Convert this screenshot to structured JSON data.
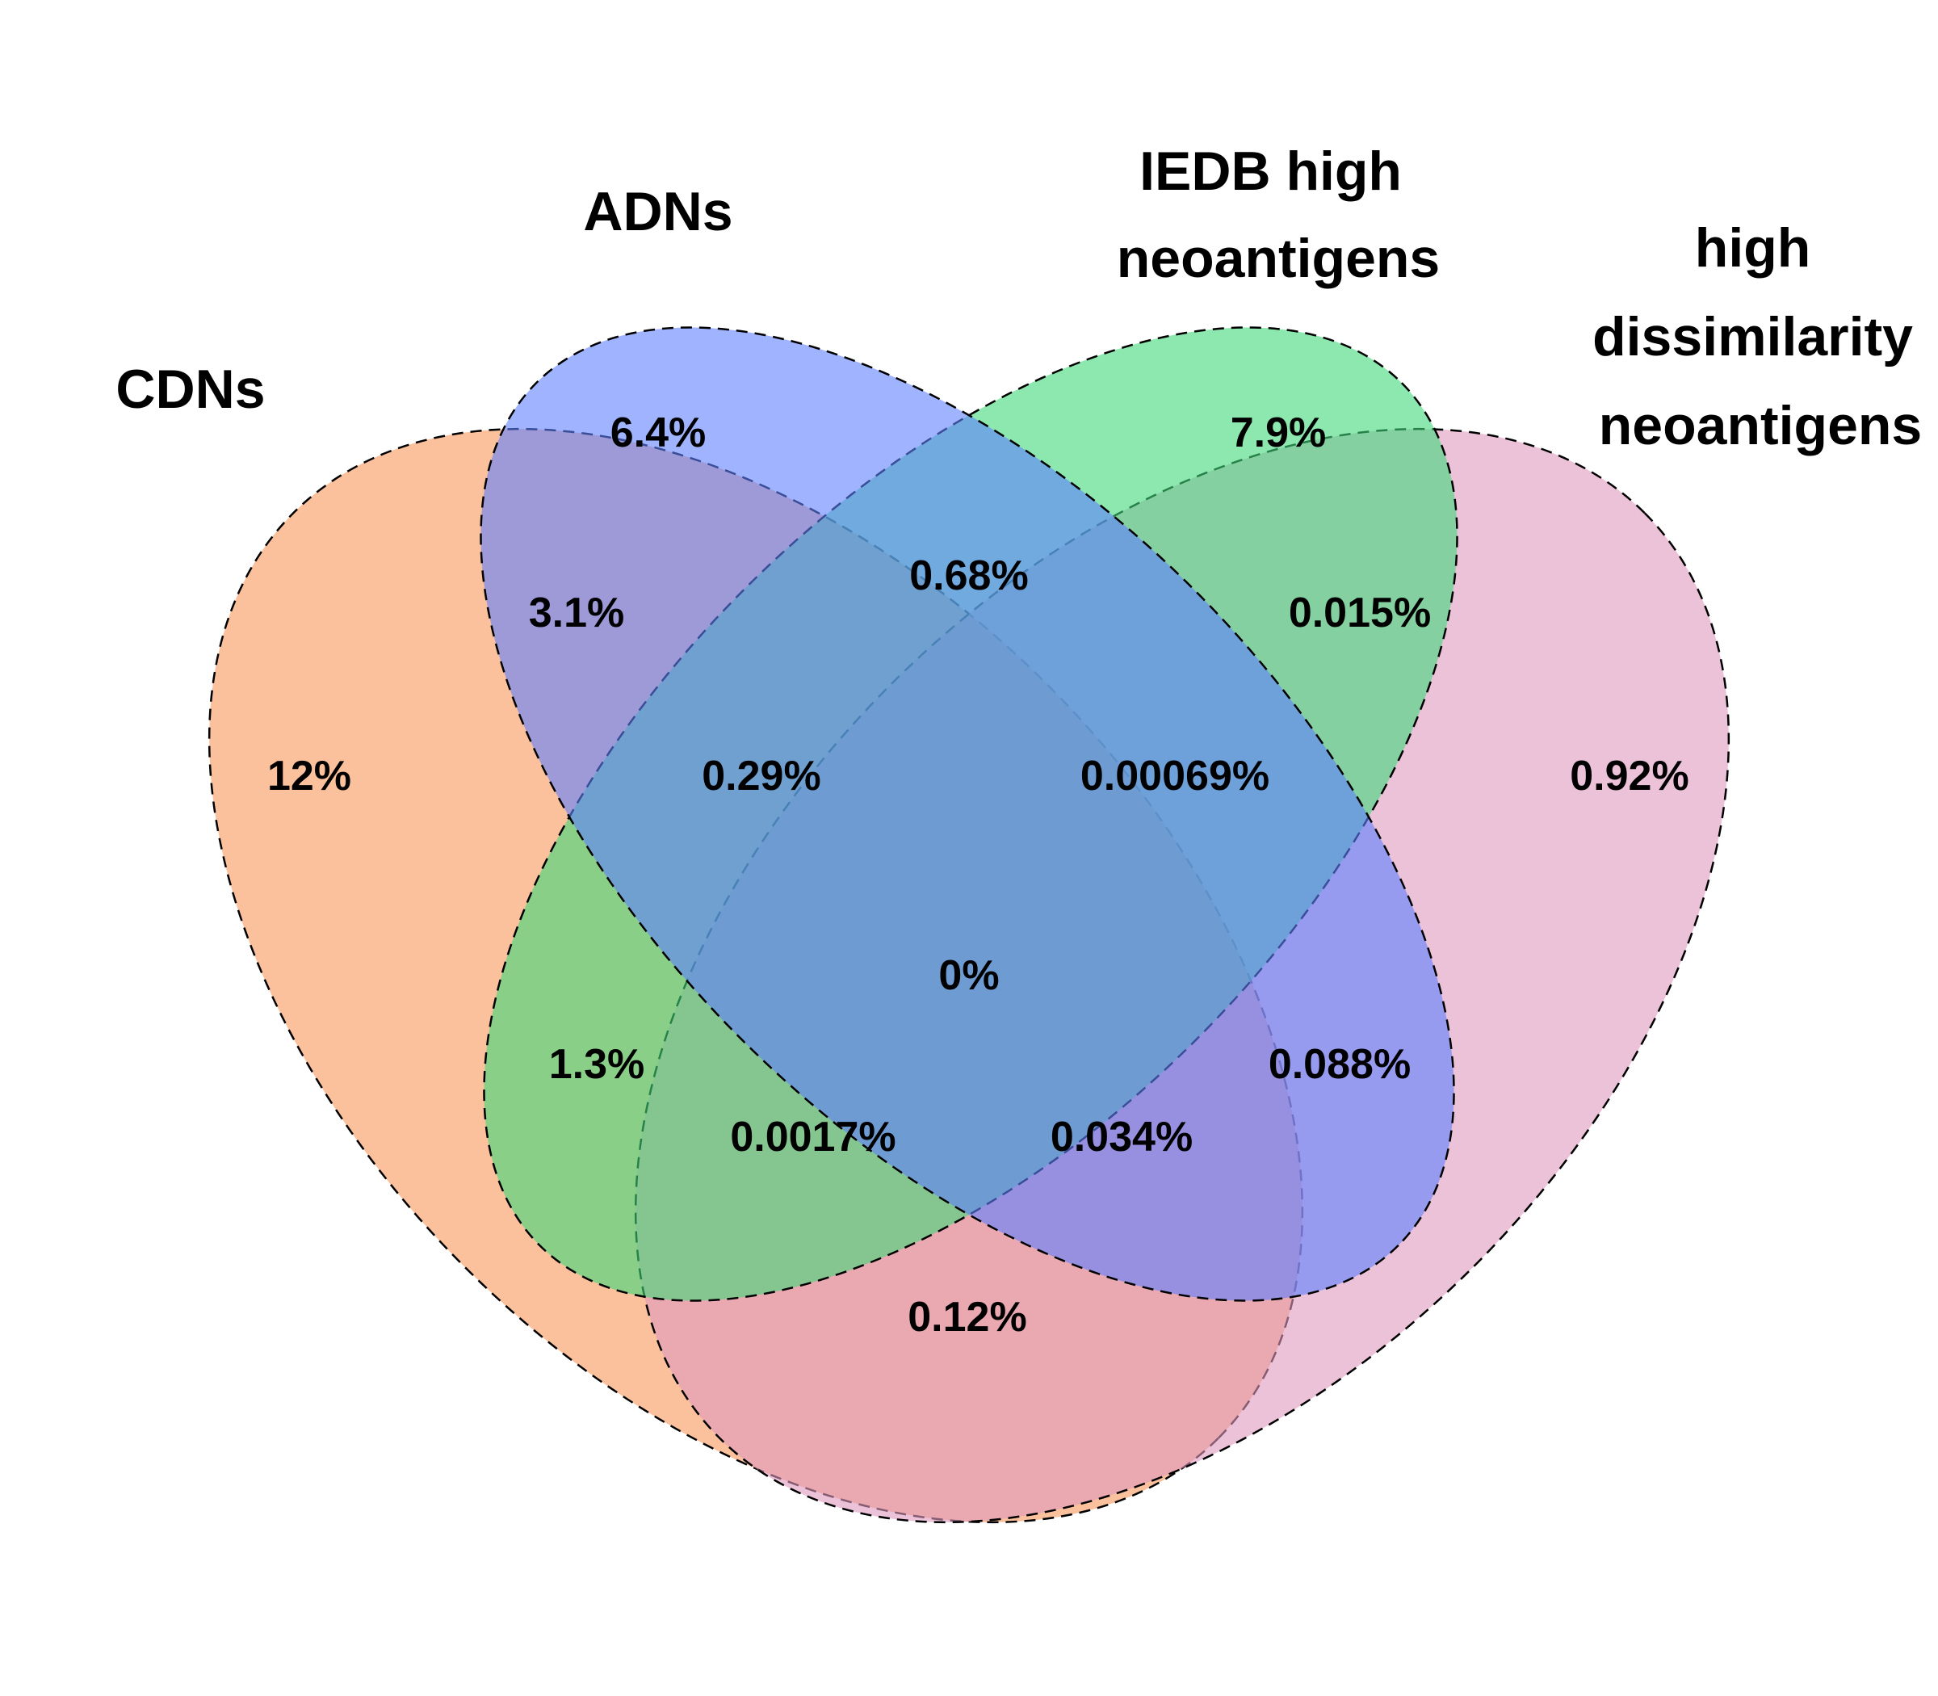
{
  "sets": [
    {
      "id": "cdns",
      "label_lines": [
        "CDNs"
      ],
      "color": "#F8965A"
    },
    {
      "id": "adns",
      "label_lines": [
        "ADNs"
      ],
      "color": "#5F80FF"
    },
    {
      "id": "iedb",
      "label_lines": [
        "IEDB high",
        "neoantigens"
      ],
      "color": "#3FD87A"
    },
    {
      "id": "dissim",
      "label_lines": [
        "high",
        "dissimilarity",
        "neoantigens"
      ],
      "color": "#E09AC0"
    }
  ],
  "fill_opacity": 0.6,
  "regions": [
    {
      "sets": [
        "cdns"
      ],
      "value": "12%"
    },
    {
      "sets": [
        "adns"
      ],
      "value": "6.4%"
    },
    {
      "sets": [
        "iedb"
      ],
      "value": "7.9%"
    },
    {
      "sets": [
        "dissim"
      ],
      "value": "0.92%"
    },
    {
      "sets": [
        "cdns",
        "adns"
      ],
      "value": "3.1%"
    },
    {
      "sets": [
        "adns",
        "iedb"
      ],
      "value": "0.68%"
    },
    {
      "sets": [
        "iedb",
        "dissim"
      ],
      "value": "0.015%"
    },
    {
      "sets": [
        "cdns",
        "adns",
        "iedb"
      ],
      "value": "0.29%"
    },
    {
      "sets": [
        "adns",
        "iedb",
        "dissim"
      ],
      "value": "0.00069%"
    },
    {
      "sets": [
        "cdns",
        "adns",
        "iedb",
        "dissim"
      ],
      "value": "0%"
    },
    {
      "sets": [
        "cdns",
        "iedb"
      ],
      "value": "1.3%"
    },
    {
      "sets": [
        "adns",
        "dissim"
      ],
      "value": "0.088%"
    },
    {
      "sets": [
        "cdns",
        "iedb",
        "dissim"
      ],
      "value": "0.0017%"
    },
    {
      "sets": [
        "cdns",
        "adns",
        "dissim"
      ],
      "value": "0.034%"
    },
    {
      "sets": [
        "cdns",
        "dissim"
      ],
      "value": "0.12%"
    }
  ]
}
